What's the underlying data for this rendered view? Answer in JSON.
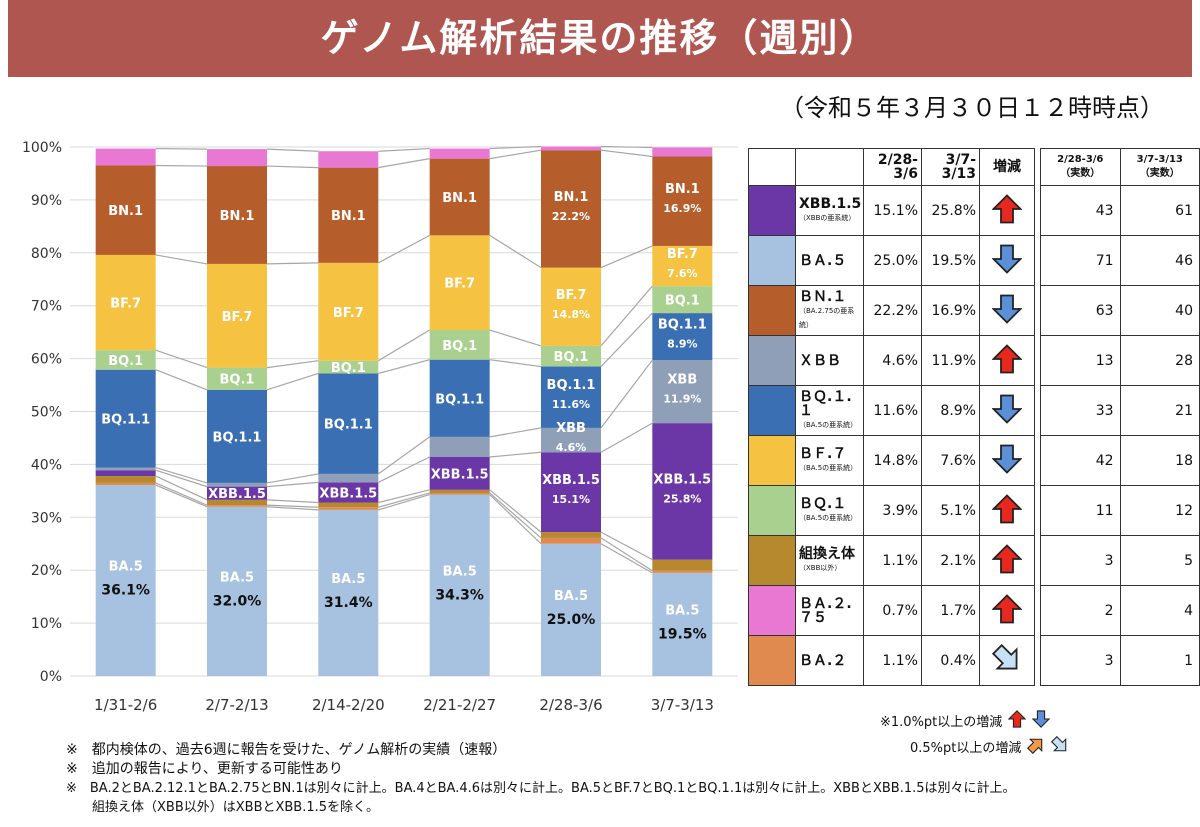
{
  "title": "ゲノム解析結果の推移（週別）",
  "as_of": "（令和５年３月３０日１２時時点）",
  "colors": {
    "BA.5": "#a7c1e1",
    "BA.2": "#e08a4f",
    "BA.2.75": "#e978d3",
    "recombinant": "#b7892f",
    "XBB.1.5": "#6b36a5",
    "XBB": "#8f9fb8",
    "BQ.1.1": "#3a6fb3",
    "BQ.1": "#a9d08e",
    "BF.7": "#f5c242",
    "BN.1": "#b55e2b",
    "up_arrow": "#e8281f",
    "down_arrow": "#5b8fd6",
    "small_up_arrow": "#f29a4a",
    "small_down_arrow": "#c6e0f5"
  },
  "chart_data": {
    "type": "bar",
    "stacked": true,
    "categories": [
      "1/31-2/6",
      "2/7-2/13",
      "2/14-2/20",
      "2/21-2/27",
      "2/28-3/6",
      "3/7-3/13"
    ],
    "ylim": [
      0,
      100
    ],
    "y_ticks": [
      "0%",
      "10%",
      "20%",
      "30%",
      "40%",
      "50%",
      "60%",
      "70%",
      "80%",
      "90%",
      "100%"
    ],
    "grid": true,
    "series": [
      {
        "name": "BA.5",
        "values": [
          36.1,
          32.0,
          31.4,
          34.3,
          25.0,
          19.5
        ]
      },
      {
        "name": "BA.2",
        "values": [
          0.4,
          0.3,
          0.5,
          0.3,
          1.1,
          0.4
        ]
      },
      {
        "name": "組換え体",
        "values": [
          1.3,
          1.0,
          0.9,
          0.6,
          1.1,
          2.1
        ]
      },
      {
        "name": "XBB.1.5",
        "values": [
          1.1,
          2.5,
          3.8,
          6.2,
          15.1,
          25.8
        ]
      },
      {
        "name": "XBB",
        "values": [
          0.5,
          0.7,
          1.6,
          3.8,
          4.6,
          11.9
        ]
      },
      {
        "name": "BQ.1.1",
        "values": [
          18.5,
          17.6,
          19.0,
          14.6,
          11.6,
          8.9
        ]
      },
      {
        "name": "BQ.1",
        "values": [
          3.7,
          4.2,
          2.4,
          5.6,
          3.9,
          5.1
        ]
      },
      {
        "name": "BF.7",
        "values": [
          18.0,
          19.6,
          18.5,
          17.9,
          14.8,
          7.6
        ]
      },
      {
        "name": "BN.1",
        "values": [
          16.9,
          18.5,
          18.0,
          14.5,
          22.2,
          16.9
        ]
      },
      {
        "name": "BA.2.75",
        "values": [
          3.2,
          3.2,
          3.1,
          1.9,
          0.7,
          1.7
        ]
      }
    ],
    "labels": [
      {
        "col": 0,
        "series": "BA.5",
        "name": "BA.5",
        "value": "36.1%"
      },
      {
        "col": 1,
        "series": "BA.5",
        "name": "BA.5",
        "value": "32.0%"
      },
      {
        "col": 2,
        "series": "BA.5",
        "name": "BA.5",
        "value": "31.4%"
      },
      {
        "col": 3,
        "series": "BA.5",
        "name": "BA.5",
        "value": "34.3%"
      },
      {
        "col": 4,
        "series": "BA.5",
        "name": "BA.5",
        "value": "25.0%"
      },
      {
        "col": 5,
        "series": "BA.5",
        "name": "BA.5",
        "value": "19.5%"
      },
      {
        "col": 0,
        "series": "BQ.1.1",
        "name": "BQ.1.1",
        "value": ""
      },
      {
        "col": 1,
        "series": "BQ.1.1",
        "name": "BQ.1.1",
        "value": ""
      },
      {
        "col": 2,
        "series": "BQ.1.1",
        "name": "BQ.1.1",
        "value": ""
      },
      {
        "col": 3,
        "series": "BQ.1.1",
        "name": "BQ.1.1",
        "value": ""
      },
      {
        "col": 4,
        "series": "BQ.1.1",
        "name": "BQ.1.1",
        "value": "11.6%"
      },
      {
        "col": 5,
        "series": "BQ.1.1",
        "name": "BQ.1.1",
        "value": "8.9%"
      },
      {
        "col": 0,
        "series": "BQ.1",
        "name": "BQ.1",
        "value": ""
      },
      {
        "col": 1,
        "series": "BQ.1",
        "name": "BQ.1",
        "value": ""
      },
      {
        "col": 2,
        "series": "BQ.1",
        "name": "BQ.1",
        "value": ""
      },
      {
        "col": 3,
        "series": "BQ.1",
        "name": "BQ.1",
        "value": ""
      },
      {
        "col": 4,
        "series": "BQ.1",
        "name": "BQ.1",
        "value": ""
      },
      {
        "col": 5,
        "series": "BQ.1",
        "name": "BQ.1",
        "value": ""
      },
      {
        "col": 0,
        "series": "BF.7",
        "name": "BF.7",
        "value": ""
      },
      {
        "col": 1,
        "series": "BF.7",
        "name": "BF.7",
        "value": ""
      },
      {
        "col": 2,
        "series": "BF.7",
        "name": "BF.7",
        "value": ""
      },
      {
        "col": 3,
        "series": "BF.7",
        "name": "BF.7",
        "value": ""
      },
      {
        "col": 4,
        "series": "BF.7",
        "name": "BF.7",
        "value": "14.8%"
      },
      {
        "col": 5,
        "series": "BF.7",
        "name": "BF.7",
        "value": "7.6%"
      },
      {
        "col": 0,
        "series": "BN.1",
        "name": "BN.1",
        "value": ""
      },
      {
        "col": 1,
        "series": "BN.1",
        "name": "BN.1",
        "value": ""
      },
      {
        "col": 2,
        "series": "BN.1",
        "name": "BN.1",
        "value": ""
      },
      {
        "col": 3,
        "series": "BN.1",
        "name": "BN.1",
        "value": ""
      },
      {
        "col": 4,
        "series": "BN.1",
        "name": "BN.1",
        "value": "22.2%"
      },
      {
        "col": 5,
        "series": "BN.1",
        "name": "BN.1",
        "value": "16.9%"
      },
      {
        "col": 1,
        "series": "XBB.1.5",
        "name": "XBB.1.5",
        "value": ""
      },
      {
        "col": 2,
        "series": "XBB.1.5",
        "name": "XBB.1.5",
        "value": ""
      },
      {
        "col": 3,
        "series": "XBB.1.5",
        "name": "XBB.1.5",
        "value": ""
      },
      {
        "col": 4,
        "series": "XBB.1.5",
        "name": "XBB.1.5",
        "value": "15.1%"
      },
      {
        "col": 5,
        "series": "XBB.1.5",
        "name": "XBB.1.5",
        "value": "25.8%"
      },
      {
        "col": 4,
        "series": "XBB",
        "name": "XBB",
        "value": "4.6%"
      },
      {
        "col": 5,
        "series": "XBB",
        "name": "XBB",
        "value": "11.9%"
      }
    ]
  },
  "table": {
    "headers": {
      "prev": "2/28-\n3/6",
      "curr": "3/7-\n3/13",
      "change": "増減",
      "prev_count": "2/28-3/6\n（実数）",
      "curr_count": "3/7-3/13\n（実数）"
    },
    "rows": [
      {
        "key": "XBB.1.5",
        "name": "XBB.1.5",
        "sub": "（XBBの亜系統）",
        "prev": "15.1%",
        "curr": "25.8%",
        "change": "up",
        "prev_count": "43",
        "curr_count": "61"
      },
      {
        "key": "BA.5",
        "name": "ＢＡ.５",
        "sub": "",
        "prev": "25.0%",
        "curr": "19.5%",
        "change": "down",
        "prev_count": "71",
        "curr_count": "46"
      },
      {
        "key": "BN.1",
        "name": "ＢＮ.１",
        "sub": "（BA.2.75の亜系統）",
        "prev": "22.2%",
        "curr": "16.9%",
        "change": "down",
        "prev_count": "63",
        "curr_count": "40"
      },
      {
        "key": "XBB",
        "name": "ＸＢＢ",
        "sub": "",
        "prev": "4.6%",
        "curr": "11.9%",
        "change": "up",
        "prev_count": "13",
        "curr_count": "28"
      },
      {
        "key": "BQ.1.1",
        "name": "ＢＱ.１.１",
        "sub": "（BA.5の亜系統）",
        "prev": "11.6%",
        "curr": "8.9%",
        "change": "down",
        "prev_count": "33",
        "curr_count": "21"
      },
      {
        "key": "BF.7",
        "name": "ＢＦ.７",
        "sub": "（BA.5の亜系統）",
        "prev": "14.8%",
        "curr": "7.6%",
        "change": "down",
        "prev_count": "42",
        "curr_count": "18"
      },
      {
        "key": "BQ.1",
        "name": "ＢＱ.１",
        "sub": "（BA.5の亜系統）",
        "prev": "3.9%",
        "curr": "5.1%",
        "change": "up",
        "prev_count": "11",
        "curr_count": "12"
      },
      {
        "key": "recombinant",
        "name": "組換え体",
        "sub": "（XBB以外）",
        "prev": "1.1%",
        "curr": "2.1%",
        "change": "up",
        "prev_count": "3",
        "curr_count": "5"
      },
      {
        "key": "BA.2.75",
        "name": "ＢＡ.２.７５",
        "sub": "",
        "prev": "0.7%",
        "curr": "1.7%",
        "change": "up",
        "prev_count": "2",
        "curr_count": "4"
      },
      {
        "key": "BA.2",
        "name": "ＢＡ.２",
        "sub": "",
        "prev": "1.1%",
        "curr": "0.4%",
        "change": "small_down",
        "prev_count": "3",
        "curr_count": "1"
      }
    ]
  },
  "legend_note": {
    "line1": "※1.0%pt以上の増減",
    "line2": "0.5%pt以上の増減"
  },
  "notes": [
    "※　都内検体の、過去6週に報告を受けた、ゲノム解析の実績（速報）",
    "※　追加の報告により、更新する可能性あり",
    "※　BA.2とBA.2.12.1とBA.2.75とBN.1は別々に計上。BA.4とBA.4.6は別々に計上。BA.5とBF.7とBQ.1とBQ.1.1は別々に計上。XBBとXBB.1.5は別々に計上。",
    "　　組換え体（XBB以外）はXBBとXBB.1.5を除く。"
  ]
}
